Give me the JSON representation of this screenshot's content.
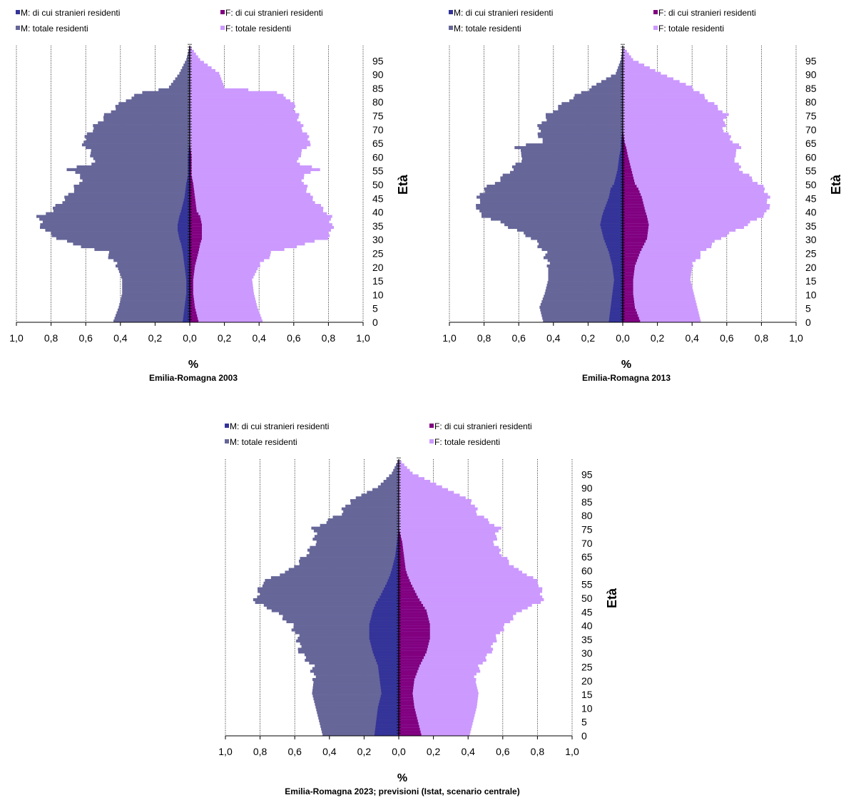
{
  "colors": {
    "m_foreign": "#333399",
    "m_total": "#666699",
    "f_foreign": "#800080",
    "f_total": "#CC99FF",
    "grid": "#000000"
  },
  "legend": {
    "m_foreign": "M: di cui stranieri residenti",
    "f_foreign": "F: di cui stranieri residenti",
    "m_total": "M: totale residenti",
    "f_total": "F: totale residenti"
  },
  "chart_data": [
    {
      "type": "bar",
      "subtype": "population-pyramid",
      "title": "Emilia-Romagna  2003",
      "xlabel": "%",
      "ylabel": "Età",
      "xlim": [
        -1.0,
        1.0
      ],
      "x_ticks": [
        "1,0",
        "0,8",
        "0,6",
        "0,4",
        "0,2",
        "0,0",
        "0,2",
        "0,4",
        "0,6",
        "0,8",
        "1,0"
      ],
      "y_ticks": [
        "0",
        "5",
        "10",
        "15",
        "20",
        "25",
        "30",
        "35",
        "40",
        "45",
        "50",
        "55",
        "60",
        "65",
        "70",
        "75",
        "80",
        "85",
        "90",
        "95"
      ],
      "ages": [
        0,
        5,
        10,
        15,
        20,
        25,
        28,
        30,
        33,
        35,
        38,
        40,
        45,
        50,
        53,
        55,
        57,
        60,
        65,
        70,
        75,
        80,
        83,
        85,
        90,
        95,
        100
      ],
      "series": [
        {
          "name": "M: totale residenti",
          "values": [
            0.44,
            0.41,
            0.39,
            0.39,
            0.42,
            0.48,
            0.68,
            0.76,
            0.84,
            0.86,
            0.87,
            0.8,
            0.71,
            0.64,
            0.62,
            0.72,
            0.56,
            0.56,
            0.62,
            0.56,
            0.48,
            0.38,
            0.27,
            0.12,
            0.06,
            0.02,
            0.0
          ]
        },
        {
          "name": "M: di cui stranieri residenti",
          "values": [
            0.04,
            0.03,
            0.02,
            0.02,
            0.03,
            0.04,
            0.05,
            0.06,
            0.07,
            0.07,
            0.06,
            0.05,
            0.03,
            0.02,
            0.01,
            0.01,
            0.01,
            0.01,
            0.0,
            0.0,
            0.0,
            0.0,
            0.0,
            0.0,
            0.0,
            0.0,
            0.0
          ]
        },
        {
          "name": "F: totale residenti",
          "values": [
            0.42,
            0.39,
            0.37,
            0.36,
            0.4,
            0.48,
            0.67,
            0.79,
            0.82,
            0.82,
            0.81,
            0.78,
            0.7,
            0.66,
            0.65,
            0.76,
            0.63,
            0.63,
            0.7,
            0.65,
            0.62,
            0.59,
            0.5,
            0.2,
            0.17,
            0.06,
            0.0
          ]
        },
        {
          "name": "F: di cui stranieri residenti",
          "values": [
            0.05,
            0.03,
            0.02,
            0.02,
            0.03,
            0.05,
            0.06,
            0.07,
            0.07,
            0.07,
            0.06,
            0.04,
            0.03,
            0.02,
            0.01,
            0.01,
            0.01,
            0.01,
            0.0,
            0.0,
            0.0,
            0.0,
            0.0,
            0.0,
            0.0,
            0.0,
            0.0
          ]
        }
      ]
    },
    {
      "type": "bar",
      "subtype": "population-pyramid",
      "title": "Emilia-Romagna  2013",
      "xlabel": "%",
      "ylabel": "Età",
      "xlim": [
        -1.0,
        1.0
      ],
      "x_ticks": [
        "1,0",
        "0,8",
        "0,6",
        "0,4",
        "0,2",
        "0,0",
        "0,2",
        "0,4",
        "0,6",
        "0,8",
        "1,0"
      ],
      "y_ticks": [
        "0",
        "5",
        "10",
        "15",
        "20",
        "25",
        "30",
        "35",
        "40",
        "45",
        "50",
        "55",
        "60",
        "65",
        "70",
        "75",
        "80",
        "85",
        "90",
        "95"
      ],
      "ages": [
        0,
        5,
        10,
        15,
        20,
        25,
        30,
        35,
        38,
        40,
        45,
        48,
        50,
        55,
        60,
        63,
        65,
        70,
        75,
        80,
        85,
        90,
        95,
        100
      ],
      "series": [
        {
          "name": "M: totale residenti",
          "values": [
            0.46,
            0.48,
            0.45,
            0.43,
            0.43,
            0.45,
            0.52,
            0.68,
            0.8,
            0.84,
            0.83,
            0.8,
            0.74,
            0.64,
            0.57,
            0.62,
            0.47,
            0.49,
            0.43,
            0.32,
            0.18,
            0.04,
            0.01,
            0.0
          ]
        },
        {
          "name": "M: di cui stranieri residenti",
          "values": [
            0.08,
            0.07,
            0.06,
            0.05,
            0.06,
            0.08,
            0.11,
            0.13,
            0.12,
            0.11,
            0.08,
            0.07,
            0.05,
            0.03,
            0.02,
            0.01,
            0.01,
            0.0,
            0.0,
            0.0,
            0.0,
            0.0,
            0.0,
            0.0
          ]
        },
        {
          "name": "F: totale residenti",
          "values": [
            0.45,
            0.43,
            0.41,
            0.39,
            0.4,
            0.46,
            0.56,
            0.72,
            0.8,
            0.84,
            0.84,
            0.82,
            0.78,
            0.68,
            0.64,
            0.68,
            0.64,
            0.58,
            0.6,
            0.5,
            0.4,
            0.22,
            0.06,
            0.0
          ]
        },
        {
          "name": "F: di cui stranieri residenti",
          "values": [
            0.1,
            0.07,
            0.06,
            0.06,
            0.07,
            0.1,
            0.14,
            0.15,
            0.14,
            0.13,
            0.11,
            0.09,
            0.07,
            0.05,
            0.03,
            0.02,
            0.01,
            0.0,
            0.0,
            0.0,
            0.0,
            0.0,
            0.0,
            0.0
          ]
        }
      ]
    },
    {
      "type": "bar",
      "subtype": "population-pyramid",
      "title": "Emilia-Romagna  2023; previsioni  (Istat, scenario centrale)",
      "xlabel": "%",
      "ylabel": "Età",
      "xlim": [
        -1.0,
        1.0
      ],
      "x_ticks": [
        "1,0",
        "0,8",
        "0,6",
        "0,4",
        "0,2",
        "0,0",
        "0,2",
        "0,4",
        "0,6",
        "0,8",
        "1,0"
      ],
      "y_ticks": [
        "0",
        "5",
        "10",
        "15",
        "20",
        "25",
        "30",
        "35",
        "40",
        "45",
        "50",
        "55",
        "60",
        "65",
        "70",
        "75",
        "80",
        "85",
        "90",
        "95"
      ],
      "ages": [
        0,
        5,
        10,
        15,
        20,
        25,
        30,
        35,
        40,
        45,
        48,
        50,
        55,
        58,
        60,
        65,
        70,
        75,
        80,
        85,
        90,
        95,
        100
      ],
      "series": [
        {
          "name": "M: totale residenti",
          "values": [
            0.44,
            0.46,
            0.48,
            0.5,
            0.49,
            0.5,
            0.57,
            0.58,
            0.62,
            0.72,
            0.83,
            0.82,
            0.79,
            0.7,
            0.62,
            0.54,
            0.48,
            0.49,
            0.34,
            0.28,
            0.12,
            0.04,
            0.0
          ]
        },
        {
          "name": "M: di cui stranieri residenti",
          "values": [
            0.14,
            0.13,
            0.12,
            0.1,
            0.11,
            0.12,
            0.15,
            0.17,
            0.17,
            0.15,
            0.13,
            0.11,
            0.07,
            0.05,
            0.04,
            0.02,
            0.01,
            0.0,
            0.0,
            0.0,
            0.0,
            0.0,
            0.0
          ]
        },
        {
          "name": "F: totale residenti",
          "values": [
            0.41,
            0.43,
            0.45,
            0.46,
            0.44,
            0.47,
            0.53,
            0.56,
            0.62,
            0.7,
            0.82,
            0.83,
            0.81,
            0.75,
            0.68,
            0.6,
            0.55,
            0.58,
            0.46,
            0.42,
            0.25,
            0.08,
            0.0
          ]
        },
        {
          "name": "F: di cui stranieri residenti",
          "values": [
            0.13,
            0.11,
            0.09,
            0.08,
            0.09,
            0.12,
            0.16,
            0.18,
            0.18,
            0.16,
            0.13,
            0.11,
            0.07,
            0.05,
            0.04,
            0.03,
            0.02,
            0.0,
            0.0,
            0.0,
            0.0,
            0.0,
            0.0
          ]
        }
      ]
    }
  ]
}
